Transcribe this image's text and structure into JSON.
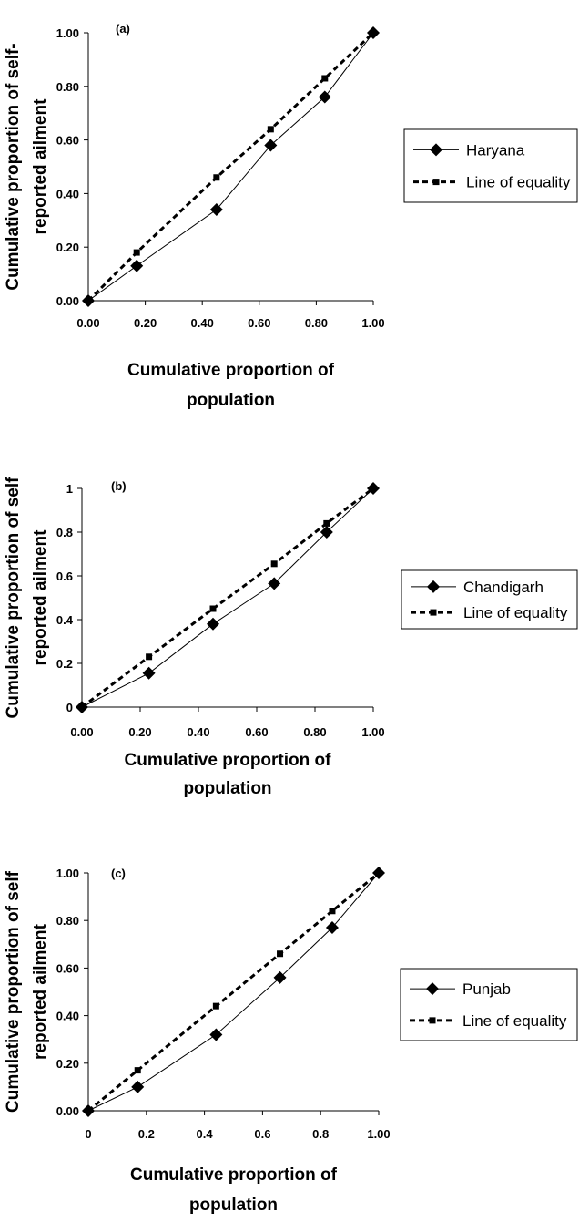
{
  "chart_data": [
    {
      "type": "line",
      "panel_label": "(a)",
      "xlabel": [
        "Cumulative proportion of",
        "population"
      ],
      "ylabel": [
        "Cumulative proportion of self-",
        "reported ailment"
      ],
      "xlim": [
        0,
        1
      ],
      "ylim": [
        0,
        1
      ],
      "xticks": [
        "0.00",
        "0.20",
        "0.40",
        "0.60",
        "0.80",
        "1.00"
      ],
      "yticks": [
        "0.00",
        "0.20",
        "0.40",
        "0.60",
        "0.80",
        "1.00"
      ],
      "legend_position": "right",
      "series": [
        {
          "name": "Haryana",
          "style": "solid",
          "marker": "diamond",
          "x": [
            0,
            0.17,
            0.45,
            0.64,
            0.83,
            1.0
          ],
          "y": [
            0,
            0.13,
            0.34,
            0.58,
            0.76,
            1.0
          ]
        },
        {
          "name": "Line of equality",
          "style": "dashed",
          "marker": "square",
          "x": [
            0,
            0.17,
            0.45,
            0.64,
            0.83,
            1.0
          ],
          "y": [
            0,
            0.18,
            0.46,
            0.64,
            0.83,
            1.0
          ]
        }
      ]
    },
    {
      "type": "line",
      "panel_label": "(b)",
      "xlabel": [
        "Cumulative proportion of",
        "population"
      ],
      "ylabel": [
        "Cumulative proportion of self",
        "reported ailment"
      ],
      "xlim": [
        0,
        1
      ],
      "ylim": [
        0,
        1
      ],
      "xticks": [
        "0.00",
        "0.20",
        "0.40",
        "0.60",
        "0.80",
        "1.00"
      ],
      "yticks": [
        "0",
        "0.2",
        "0.4",
        "0.6",
        "0.8",
        "1"
      ],
      "legend_position": "right",
      "series": [
        {
          "name": "Chandigarh",
          "style": "solid",
          "marker": "diamond",
          "x": [
            0,
            0.23,
            0.45,
            0.66,
            0.84,
            1.0
          ],
          "y": [
            0,
            0.155,
            0.38,
            0.565,
            0.8,
            1.0
          ]
        },
        {
          "name": "Line of equality",
          "style": "dashed",
          "marker": "square",
          "x": [
            0,
            0.23,
            0.45,
            0.66,
            0.84,
            1.0
          ],
          "y": [
            0,
            0.23,
            0.45,
            0.655,
            0.84,
            1.0
          ]
        }
      ]
    },
    {
      "type": "line",
      "panel_label": "(c)",
      "xlabel": [
        "Cumulative proportion of",
        "population"
      ],
      "ylabel": [
        "Cumulative proportion of self",
        "reported ailment"
      ],
      "xlim": [
        0,
        1
      ],
      "ylim": [
        0,
        1
      ],
      "xticks": [
        "0",
        "0.2",
        "0.4",
        "0.6",
        "0.8",
        "1.00"
      ],
      "yticks": [
        "0.00",
        "0.20",
        "0.40",
        "0.60",
        "0.80",
        "1.00"
      ],
      "legend_position": "right",
      "series": [
        {
          "name": "Punjab",
          "style": "solid",
          "marker": "diamond",
          "x": [
            0,
            0.17,
            0.44,
            0.66,
            0.84,
            1.0
          ],
          "y": [
            0,
            0.1,
            0.32,
            0.56,
            0.77,
            1.0
          ]
        },
        {
          "name": "Line of equality",
          "style": "dashed",
          "marker": "square",
          "x": [
            0,
            0.17,
            0.44,
            0.66,
            0.84,
            1.0
          ],
          "y": [
            0,
            0.17,
            0.44,
            0.66,
            0.84,
            1.0
          ]
        }
      ]
    }
  ]
}
